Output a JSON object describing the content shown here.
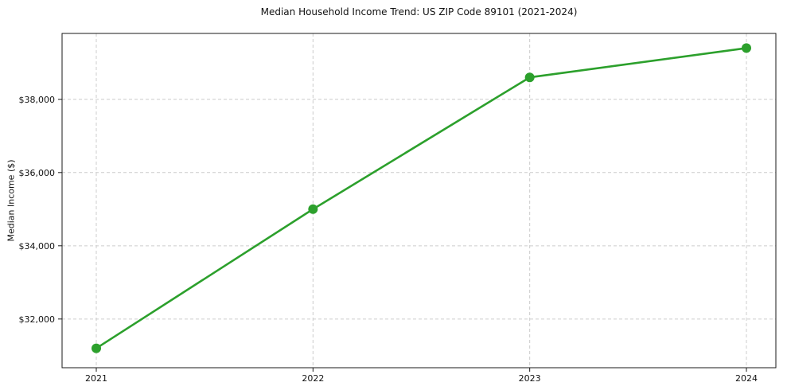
{
  "chart_data": {
    "type": "line",
    "title": "Median Household Income Trend: US ZIP Code 89101 (2021-2024)",
    "xlabel": "",
    "ylabel": "Median Income ($)",
    "series_name": "Median Household Income",
    "x": [
      2021,
      2022,
      2023,
      2024
    ],
    "xtick_labels": [
      "2021",
      "2022",
      "2023",
      "2024"
    ],
    "values": [
      31200,
      35000,
      38600,
      39400
    ],
    "yticks": [
      32000,
      34000,
      36000,
      38000
    ],
    "ytick_labels": [
      "$32,000",
      "$34,000",
      "$36,000",
      "$38,000"
    ],
    "ylim": [
      30670,
      39800
    ],
    "grid": true,
    "grid_style": "dashed",
    "legend_position": "none",
    "line_color": "#2ca02c",
    "marker": "circle",
    "background_color": "#ffffff"
  }
}
